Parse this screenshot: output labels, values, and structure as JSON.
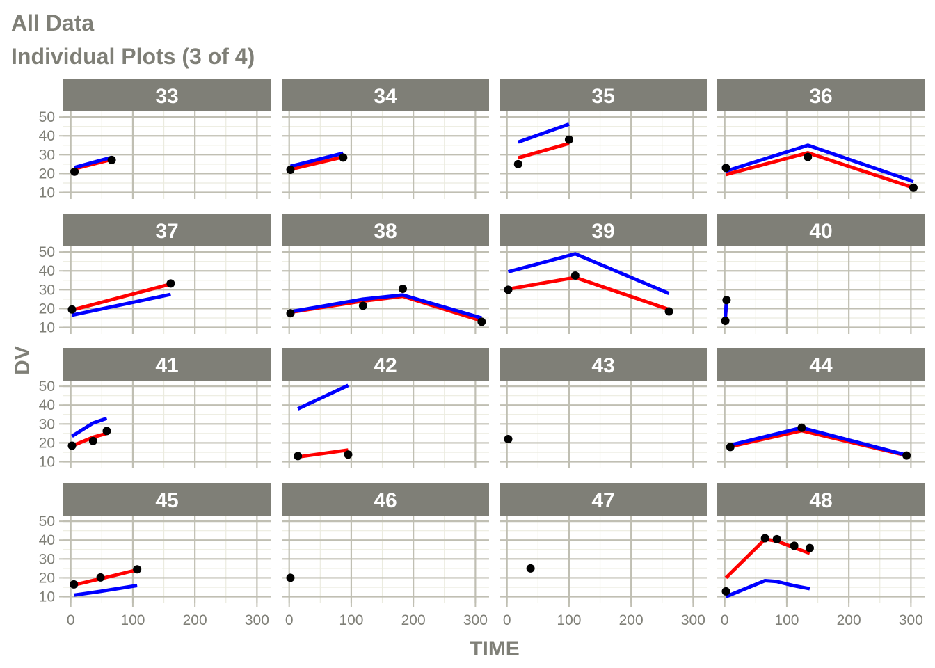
{
  "title": "All Data",
  "subtitle": "Individual Plots (3 of 4)",
  "chart_data": {
    "type": "line",
    "xlabel": "TIME",
    "ylabel": "DV",
    "xlim": [
      -12,
      322
    ],
    "ylim": [
      6.5,
      53
    ],
    "xticks": [
      0,
      100,
      200,
      300
    ],
    "yticks": [
      10,
      20,
      30,
      40,
      50
    ],
    "grid": true,
    "legend": "none",
    "colors": {
      "observed": "#000000",
      "red_line": "#ff0000",
      "blue_line": "#0000ff",
      "strip": "#7f7f77",
      "grid_major": "#c0bfb3",
      "grid_minor": "#ebebdf",
      "text": "#7f7f77"
    },
    "panels": [
      {
        "id": "33",
        "points": [
          [
            6,
            21
          ],
          [
            66,
            27.2
          ]
        ],
        "red": [
          [
            6,
            22.5
          ],
          [
            66,
            27.5
          ]
        ],
        "blue": [
          [
            6,
            23.2
          ],
          [
            66,
            28.6
          ]
        ]
      },
      {
        "id": "34",
        "points": [
          [
            2,
            22
          ],
          [
            87,
            28.5
          ]
        ],
        "red": [
          [
            2,
            22.2
          ],
          [
            87,
            28.8
          ]
        ],
        "blue": [
          [
            2,
            23.8
          ],
          [
            87,
            30.8
          ]
        ]
      },
      {
        "id": "35",
        "points": [
          [
            18,
            25
          ],
          [
            100,
            38
          ]
        ],
        "red": [
          [
            18,
            28.3
          ],
          [
            100,
            36
          ]
        ],
        "blue": [
          [
            18,
            36.7
          ],
          [
            100,
            46.2
          ]
        ]
      },
      {
        "id": "36",
        "points": [
          [
            2,
            23
          ],
          [
            134,
            28.8
          ],
          [
            304,
            12.5
          ]
        ],
        "red": [
          [
            2,
            19.5
          ],
          [
            134,
            31
          ],
          [
            304,
            12.5
          ]
        ],
        "blue": [
          [
            2,
            21.3
          ],
          [
            134,
            35
          ],
          [
            304,
            15.8
          ]
        ]
      },
      {
        "id": "37",
        "points": [
          [
            2,
            19.5
          ],
          [
            161,
            33.3
          ]
        ],
        "red": [
          [
            2,
            19.2
          ],
          [
            161,
            33
          ]
        ],
        "blue": [
          [
            2,
            16.5
          ],
          [
            161,
            27.5
          ]
        ]
      },
      {
        "id": "38",
        "points": [
          [
            2,
            17.5
          ],
          [
            119,
            21.5
          ],
          [
            183,
            30.5
          ],
          [
            310,
            13
          ]
        ],
        "red": [
          [
            2,
            18
          ],
          [
            119,
            24
          ],
          [
            183,
            26.5
          ],
          [
            310,
            13.5
          ]
        ],
        "blue": [
          [
            2,
            18.3
          ],
          [
            119,
            25
          ],
          [
            183,
            27.2
          ],
          [
            310,
            15
          ]
        ]
      },
      {
        "id": "39",
        "points": [
          [
            2,
            30
          ],
          [
            110,
            37.5
          ],
          [
            261,
            18.5
          ]
        ],
        "red": [
          [
            2,
            30.3
          ],
          [
            110,
            36.5
          ],
          [
            261,
            19.5
          ]
        ],
        "blue": [
          [
            2,
            39.5
          ],
          [
            110,
            49
          ],
          [
            261,
            28
          ]
        ]
      },
      {
        "id": "40",
        "points": [
          [
            1,
            13.5
          ],
          [
            3,
            24.5
          ]
        ],
        "red": [
          [
            1,
            15
          ],
          [
            3,
            24
          ]
        ],
        "blue": [
          [
            1,
            15.5
          ],
          [
            3,
            24.3
          ]
        ]
      },
      {
        "id": "41",
        "points": [
          [
            2,
            18.5
          ],
          [
            36,
            21
          ],
          [
            58,
            26.3
          ]
        ],
        "red": [
          [
            2,
            18.3
          ],
          [
            36,
            23
          ],
          [
            58,
            25
          ]
        ],
        "blue": [
          [
            2,
            23.5
          ],
          [
            36,
            30.5
          ],
          [
            58,
            33
          ]
        ]
      },
      {
        "id": "42",
        "points": [
          [
            14,
            13
          ],
          [
            95,
            13.8
          ]
        ],
        "red": [
          [
            14,
            12.5
          ],
          [
            95,
            16.2
          ]
        ],
        "blue": [
          [
            14,
            38
          ],
          [
            95,
            50.5
          ]
        ]
      },
      {
        "id": "43",
        "points": [
          [
            2,
            22
          ]
        ],
        "red": [],
        "blue": []
      },
      {
        "id": "44",
        "points": [
          [
            9,
            17.8
          ],
          [
            124,
            28
          ],
          [
            293,
            13.3
          ]
        ],
        "red": [
          [
            9,
            18
          ],
          [
            124,
            26.5
          ],
          [
            293,
            13.3
          ]
        ],
        "blue": [
          [
            9,
            18.8
          ],
          [
            124,
            28
          ],
          [
            293,
            13.5
          ]
        ]
      },
      {
        "id": "45",
        "points": [
          [
            5,
            16.5
          ],
          [
            48,
            20.2
          ],
          [
            107,
            24.5
          ]
        ],
        "red": [
          [
            5,
            16.2
          ],
          [
            48,
            19.5
          ],
          [
            107,
            24.2
          ]
        ],
        "blue": [
          [
            5,
            10.8
          ],
          [
            48,
            12.8
          ],
          [
            107,
            15.9
          ]
        ]
      },
      {
        "id": "46",
        "points": [
          [
            2,
            20
          ]
        ],
        "red": [],
        "blue": []
      },
      {
        "id": "47",
        "points": [
          [
            38,
            25
          ]
        ],
        "red": [],
        "blue": []
      },
      {
        "id": "48",
        "points": [
          [
            2,
            12.8
          ],
          [
            65,
            41
          ],
          [
            84,
            40.5
          ],
          [
            112,
            37
          ],
          [
            137,
            35.8
          ]
        ],
        "red": [
          [
            2,
            20
          ],
          [
            65,
            40.5
          ],
          [
            84,
            39.5
          ],
          [
            112,
            36
          ],
          [
            137,
            33
          ]
        ],
        "blue": [
          [
            2,
            10
          ],
          [
            65,
            18.5
          ],
          [
            84,
            18
          ],
          [
            112,
            15.8
          ],
          [
            137,
            14.2
          ]
        ]
      }
    ]
  }
}
